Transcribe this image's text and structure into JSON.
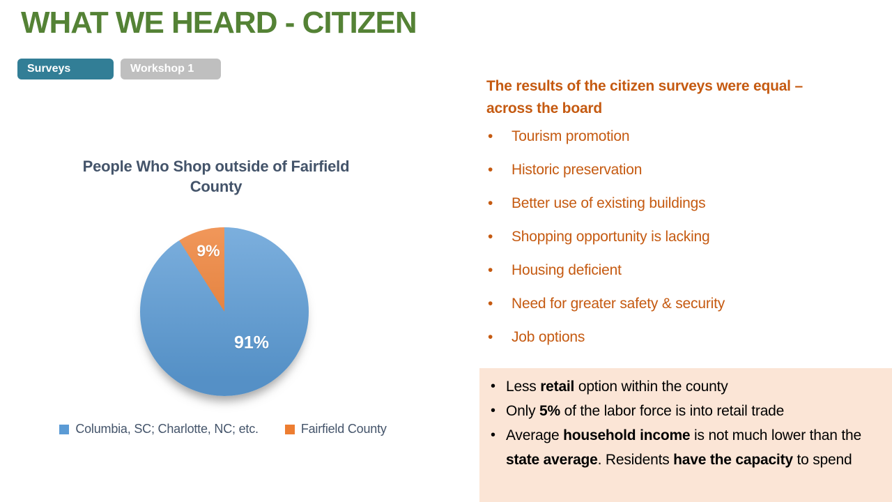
{
  "slide": {
    "title": "WHAT WE HEARD - CITIZEN"
  },
  "tabs": [
    {
      "label": "Surveys",
      "active": true
    },
    {
      "label": "Workshop 1",
      "active": false
    }
  ],
  "chart_data": {
    "type": "pie",
    "title": "People Who Shop outside of Fairfield County",
    "categories": [
      "Columbia, SC; Charlotte, NC; etc.",
      "Fairfield County"
    ],
    "values": [
      91,
      9
    ],
    "data_labels": [
      "91%",
      "9%"
    ],
    "colors": [
      "#5B9BD5",
      "#ED7D31"
    ],
    "legend_position": "bottom",
    "start_angle_deg": 0,
    "direction": "clockwise"
  },
  "right_panel": {
    "heading": "The results of the citizen surveys were equal – across the board",
    "bullets": [
      "Tourism promotion",
      "Historic preservation",
      "Better use of existing buildings",
      "Shopping opportunity is lacking",
      "Housing deficient",
      "Need for greater safety & security",
      "Job options"
    ]
  },
  "insight_box": {
    "background": "#FBE5D6",
    "bullets": [
      {
        "segments": [
          {
            "text": "Less ",
            "bold": false
          },
          {
            "text": "retail",
            "bold": true
          },
          {
            "text": " option within the county",
            "bold": false
          }
        ]
      },
      {
        "segments": [
          {
            "text": "Only ",
            "bold": false
          },
          {
            "text": "5%",
            "bold": true
          },
          {
            "text": " of the labor force is into retail trade",
            "bold": false
          }
        ]
      },
      {
        "segments": [
          {
            "text": "Average ",
            "bold": false
          },
          {
            "text": "household income",
            "bold": true
          },
          {
            "text": " is not much lower than the ",
            "bold": false
          },
          {
            "text": "state average",
            "bold": true
          },
          {
            "text": ". Residents ",
            "bold": false
          },
          {
            "text": "have the capacity",
            "bold": true
          },
          {
            "text": " to spend",
            "bold": false
          }
        ]
      }
    ]
  },
  "colors": {
    "title_green": "#548235",
    "tab_active": "#327E96",
    "tab_inactive": "#BFBFBF",
    "chart_text": "#44546A",
    "accent_orange_text": "#C55A11",
    "insight_background": "#FBE5D6"
  }
}
